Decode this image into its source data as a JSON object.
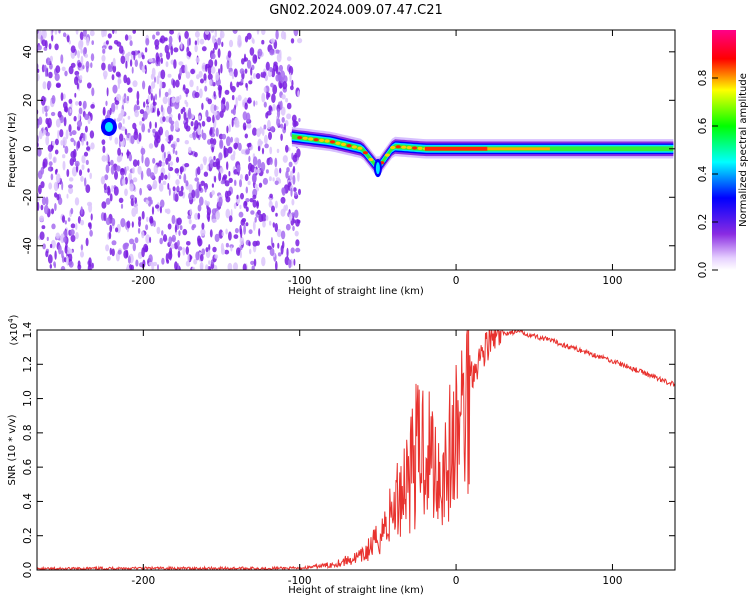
{
  "figure_title": "GN02.2024.009.07.47.C21",
  "chart_data": [
    {
      "type": "heatmap",
      "xlabel": "Height of straight line (km)",
      "ylabel": "Frequency (Hz)",
      "xlim": [
        -268,
        140
      ],
      "ylim": [
        -50,
        49
      ],
      "xticks": [
        -200,
        -100,
        0,
        100
      ],
      "yticks": [
        -40,
        -20,
        0,
        20,
        40
      ],
      "colorbar": {
        "label": "Normalized spectral amplitude",
        "range": [
          0,
          1
        ],
        "ticks": [
          "0.0",
          "0.2",
          "0.4",
          "0.6",
          "0.8"
        ],
        "tick_values": [
          0.0,
          0.2,
          0.4,
          0.6,
          0.8
        ],
        "colormap": [
          "#ffffff",
          "#e6d0ff",
          "#8a2be2",
          "#0000ff",
          "#00ffff",
          "#00ff00",
          "#ffff00",
          "#ff0000",
          "#ff00aa"
        ]
      },
      "features": [
        {
          "name": "noise",
          "x_range": [
            -268,
            -100
          ],
          "freq_range": [
            -50,
            49
          ],
          "amplitude": 0.12
        },
        {
          "name": "spot",
          "x": -222,
          "freq": 9,
          "amplitude": 0.45
        },
        {
          "name": "signal",
          "x_range": [
            -105,
            140
          ],
          "freq": [
            {
              "x": -105,
              "f": 5
            },
            {
              "x": -80,
              "f": 3
            },
            {
              "x": -60,
              "f": 0
            },
            {
              "x": -50,
              "f": -8
            },
            {
              "x": -40,
              "f": 1
            },
            {
              "x": -20,
              "f": 0
            },
            {
              "x": 0,
              "f": 0
            },
            {
              "x": 140,
              "f": 0
            }
          ],
          "amplitude_peak": 0.95
        }
      ]
    },
    {
      "type": "line",
      "xlabel": "Height of straight line (km)",
      "ylabel": "SNR (10 * v/v)",
      "multiplier": "(x10",
      "multiplier_exp": "4",
      "multiplier_close": ")",
      "xlim": [
        -268,
        140
      ],
      "ylim": [
        0,
        1.4
      ],
      "xticks": [
        -200,
        -100,
        0,
        100
      ],
      "yticks": [
        "0.0",
        "0.2",
        "0.4",
        "0.6",
        "0.8",
        "1.0",
        "1.2",
        "1.4"
      ],
      "ytick_values": [
        0.0,
        0.2,
        0.4,
        0.6,
        0.8,
        1.0,
        1.2,
        1.4
      ],
      "color": "#e8322e",
      "series": [
        {
          "x": [
            -268,
            -220,
            -100,
            -80,
            -60,
            -50,
            -40,
            -30,
            -20,
            -10,
            0,
            10,
            20,
            30,
            40,
            60,
            80,
            100,
            120,
            140
          ],
          "y": [
            0.005,
            0.01,
            0.01,
            0.03,
            0.08,
            0.18,
            0.35,
            0.6,
            0.75,
            0.55,
            0.75,
            1.15,
            1.32,
            1.38,
            1.39,
            1.34,
            1.28,
            1.22,
            1.15,
            1.08
          ]
        }
      ]
    }
  ]
}
